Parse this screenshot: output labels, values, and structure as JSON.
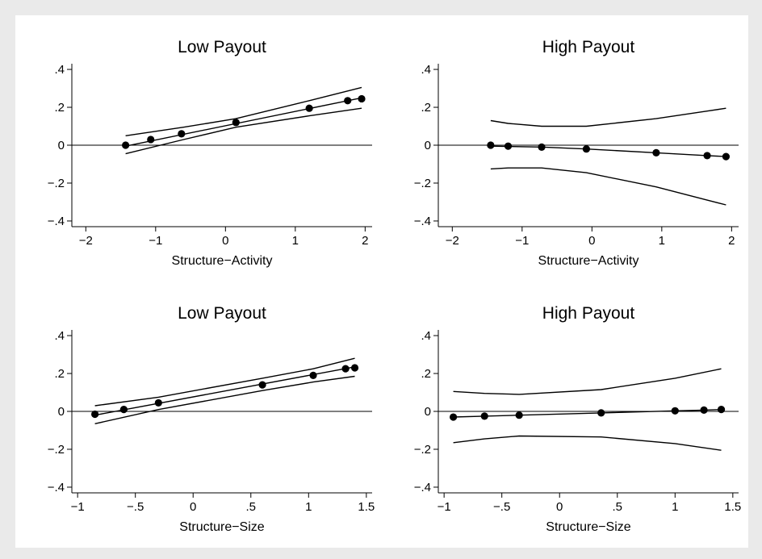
{
  "chart_data": [
    {
      "type": "line",
      "title": "Low Payout",
      "xlabel": "Structure−Activity",
      "ylabel": "",
      "xlim": [
        -2.2,
        2.1
      ],
      "ylim": [
        -0.43,
        0.43
      ],
      "xticks": [
        -2,
        -1,
        0,
        1,
        2
      ],
      "xtick_labels": [
        "−2",
        "−1",
        "0",
        "1",
        "2"
      ],
      "yticks": [
        0.4,
        0.2,
        0,
        -0.2,
        -0.4
      ],
      "ytick_labels": [
        ".4",
        ".2",
        "0",
        "−.2",
        "−.4"
      ],
      "zero_line": true,
      "grid": false,
      "points": {
        "x": [
          -1.43,
          -1.07,
          -0.63,
          0.15,
          1.2,
          1.75,
          1.95
        ],
        "y": [
          0.0,
          0.03,
          0.06,
          0.12,
          0.195,
          0.235,
          0.245
        ]
      },
      "fit": {
        "x": [
          -1.43,
          1.95
        ],
        "y": [
          -0.005,
          0.25
        ]
      },
      "ci_upper": {
        "x": [
          -1.43,
          -0.6,
          0.15,
          1.2,
          1.95
        ],
        "y": [
          0.05,
          0.095,
          0.14,
          0.235,
          0.305
        ]
      },
      "ci_lower": {
        "x": [
          -1.43,
          -0.6,
          0.15,
          1.2,
          1.95
        ],
        "y": [
          -0.045,
          0.03,
          0.095,
          0.155,
          0.195
        ]
      }
    },
    {
      "type": "line",
      "title": "High Payout",
      "xlabel": "Structure−Activity",
      "ylabel": "",
      "xlim": [
        -2.2,
        2.1
      ],
      "ylim": [
        -0.43,
        0.43
      ],
      "xticks": [
        -2,
        -1,
        0,
        1,
        2
      ],
      "xtick_labels": [
        "−2",
        "−1",
        "0",
        "1",
        "2"
      ],
      "yticks": [
        0.4,
        0.2,
        0,
        -0.2,
        -0.4
      ],
      "ytick_labels": [
        ".4",
        ".2",
        "0",
        "−.2",
        "−.4"
      ],
      "zero_line": true,
      "grid": false,
      "points": {
        "x": [
          -1.45,
          -1.2,
          -0.72,
          -0.08,
          0.92,
          1.65,
          1.92
        ],
        "y": [
          0.0,
          -0.005,
          -0.01,
          -0.02,
          -0.04,
          -0.055,
          -0.06
        ]
      },
      "fit": {
        "x": [
          -1.45,
          -0.72,
          -0.08,
          0.92,
          1.65,
          1.92
        ],
        "y": [
          -0.005,
          -0.01,
          -0.02,
          -0.04,
          -0.055,
          -0.06
        ]
      },
      "ci_upper": {
        "x": [
          -1.45,
          -1.2,
          -0.72,
          -0.08,
          0.92,
          1.65,
          1.92
        ],
        "y": [
          0.13,
          0.115,
          0.1,
          0.1,
          0.14,
          0.18,
          0.195
        ]
      },
      "ci_lower": {
        "x": [
          -1.45,
          -1.2,
          -0.72,
          -0.08,
          0.92,
          1.65,
          1.92
        ],
        "y": [
          -0.125,
          -0.12,
          -0.12,
          -0.145,
          -0.22,
          -0.29,
          -0.315
        ]
      }
    },
    {
      "type": "line",
      "title": "Low Payout",
      "xlabel": "Structure−Size",
      "ylabel": "",
      "xlim": [
        -1.05,
        1.55
      ],
      "ylim": [
        -0.43,
        0.43
      ],
      "xticks": [
        -1,
        -0.5,
        0,
        0.5,
        1,
        1.5
      ],
      "xtick_labels": [
        "−1",
        "−.5",
        "0",
        ".5",
        "1",
        "1.5"
      ],
      "yticks": [
        0.4,
        0.2,
        0,
        -0.2,
        -0.4
      ],
      "ytick_labels": [
        ".4",
        ".2",
        "0",
        "−.2",
        "−.4"
      ],
      "zero_line": true,
      "grid": false,
      "points": {
        "x": [
          -0.85,
          -0.6,
          -0.3,
          0.6,
          1.04,
          1.32,
          1.4
        ],
        "y": [
          -0.015,
          0.01,
          0.045,
          0.14,
          0.19,
          0.225,
          0.23
        ]
      },
      "fit": {
        "x": [
          -0.85,
          1.4
        ],
        "y": [
          -0.02,
          0.235
        ]
      },
      "ci_upper": {
        "x": [
          -0.85,
          -0.3,
          0.6,
          1.04,
          1.4
        ],
        "y": [
          0.03,
          0.075,
          0.175,
          0.225,
          0.28
        ]
      },
      "ci_lower": {
        "x": [
          -0.85,
          -0.3,
          0.6,
          1.04,
          1.4
        ],
        "y": [
          -0.065,
          0.01,
          0.11,
          0.155,
          0.185
        ]
      }
    },
    {
      "type": "line",
      "title": "High Payout",
      "xlabel": "Structure−Size",
      "ylabel": "",
      "xlim": [
        -1.05,
        1.55
      ],
      "ylim": [
        -0.43,
        0.43
      ],
      "xticks": [
        -1,
        -0.5,
        0,
        0.5,
        1,
        1.5
      ],
      "xtick_labels": [
        "−1",
        "−.5",
        "0",
        ".5",
        "1",
        "1.5"
      ],
      "yticks": [
        0.4,
        0.2,
        0,
        -0.2,
        -0.4
      ],
      "ytick_labels": [
        ".4",
        ".2",
        "0",
        "−.2",
        "−.4"
      ],
      "zero_line": true,
      "grid": false,
      "points": {
        "x": [
          -0.92,
          -0.65,
          -0.35,
          0.36,
          1.0,
          1.25,
          1.4
        ],
        "y": [
          -0.03,
          -0.025,
          -0.02,
          -0.008,
          0.003,
          0.007,
          0.01
        ]
      },
      "fit": {
        "x": [
          -0.92,
          -0.65,
          -0.35,
          0.36,
          1.0,
          1.25,
          1.4
        ],
        "y": [
          -0.03,
          -0.025,
          -0.02,
          -0.008,
          0.003,
          0.007,
          0.01
        ]
      },
      "ci_upper": {
        "x": [
          -0.92,
          -0.65,
          -0.35,
          0.36,
          1.0,
          1.4
        ],
        "y": [
          0.105,
          0.095,
          0.09,
          0.115,
          0.175,
          0.225
        ]
      },
      "ci_lower": {
        "x": [
          -0.92,
          -0.65,
          -0.35,
          0.36,
          1.0,
          1.4
        ],
        "y": [
          -0.165,
          -0.145,
          -0.13,
          -0.135,
          -0.17,
          -0.205
        ]
      }
    }
  ]
}
